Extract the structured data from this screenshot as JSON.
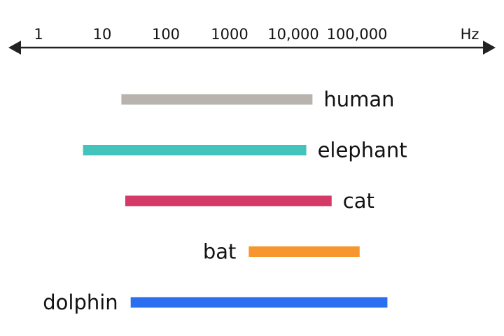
{
  "chart_data": {
    "type": "range-bar",
    "title": "",
    "xlabel": "",
    "ylabel": "",
    "x_scale": "log10",
    "x_unit": "Hz",
    "xlim": [
      1,
      1000000
    ],
    "ticks": [
      {
        "value": 1,
        "label": "1"
      },
      {
        "value": 10,
        "label": "10"
      },
      {
        "value": 100,
        "label": "100"
      },
      {
        "value": 1000,
        "label": "1000"
      },
      {
        "value": 10000,
        "label": "10,000"
      },
      {
        "value": 100000,
        "label": "100,000"
      }
    ],
    "axis_color": "#222222",
    "grid": false,
    "legend": "none",
    "series": [
      {
        "name": "human",
        "low": 20,
        "high": 20000,
        "color": "#b8b4ad",
        "label_side": "right"
      },
      {
        "name": "elephant",
        "low": 5,
        "high": 16000,
        "color": "#42c4bd",
        "label_side": "right"
      },
      {
        "name": "cat",
        "low": 23,
        "high": 40000,
        "color": "#d43a67",
        "label_side": "right"
      },
      {
        "name": "bat",
        "low": 2000,
        "high": 110000,
        "color": "#f7952f",
        "label_side": "left"
      },
      {
        "name": "dolphin",
        "low": 28,
        "high": 300000,
        "color": "#2c6ef0",
        "label_side": "left"
      }
    ]
  }
}
